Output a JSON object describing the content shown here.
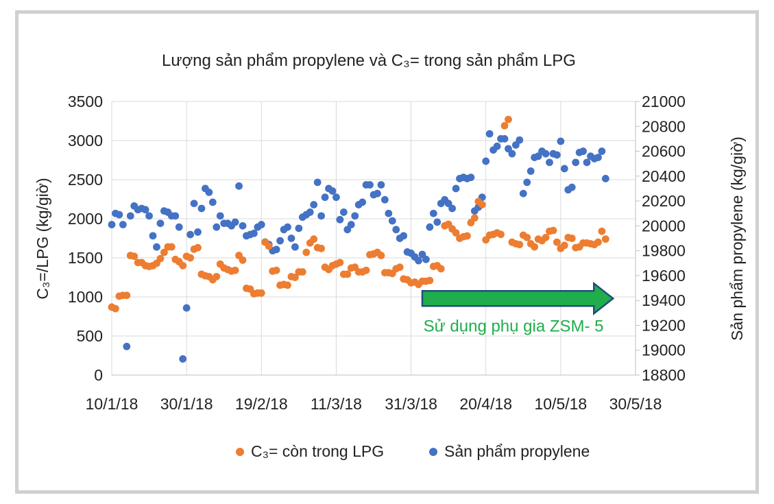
{
  "chart_data": {
    "type": "scatter",
    "title": "Lượng sản phẩm propylene và C₃= trong sản phẩm LPG",
    "x_tick_labels": [
      "10/1/18",
      "30/1/18",
      "19/2/18",
      "11/3/18",
      "31/3/18",
      "20/4/18",
      "10/5/18",
      "30/5/18"
    ],
    "x_tick_dates": [
      "2018-01-10",
      "2018-01-30",
      "2018-02-19",
      "2018-03-11",
      "2018-03-31",
      "2018-04-20",
      "2018-05-10",
      "2018-05-30"
    ],
    "xlim": [
      "2018-01-10",
      "2018-05-30"
    ],
    "ylabel_left": "C₃=/LPG (kg/giờ)",
    "ylabel_right": "Sản phẩm propylene (kg/giờ)",
    "ylim_left": [
      0,
      3500
    ],
    "ylim_right": [
      18800,
      21000
    ],
    "yticks_left": [
      "0",
      "500",
      "1000",
      "1500",
      "2000",
      "2500",
      "3000",
      "3500"
    ],
    "yticks_right": [
      "18800",
      "19000",
      "19200",
      "19400",
      "19600",
      "19800",
      "20000",
      "20200",
      "20400",
      "20600",
      "20800",
      "21000"
    ],
    "grid": true,
    "legend_position": "bottom",
    "annotation": {
      "text": "Sử dụng phụ gia ZSM- 5",
      "arrow_start": "2018-04-03",
      "arrow_end": "2018-05-24",
      "arrow_at_left_value": 980,
      "color": "#1fae4b"
    },
    "series": [
      {
        "name": "C₃= còn trong LPG",
        "axis": "left",
        "color": "#ed7d31",
        "points": [
          [
            "2018-01-10",
            870
          ],
          [
            "2018-01-11",
            850
          ],
          [
            "2018-01-12",
            1010
          ],
          [
            "2018-01-13",
            1020
          ],
          [
            "2018-01-14",
            1020
          ],
          [
            "2018-01-15",
            1530
          ],
          [
            "2018-01-16",
            1520
          ],
          [
            "2018-01-17",
            1440
          ],
          [
            "2018-01-18",
            1440
          ],
          [
            "2018-01-19",
            1400
          ],
          [
            "2018-01-20",
            1390
          ],
          [
            "2018-01-21",
            1400
          ],
          [
            "2018-01-22",
            1430
          ],
          [
            "2018-01-23",
            1490
          ],
          [
            "2018-01-24",
            1570
          ],
          [
            "2018-01-25",
            1640
          ],
          [
            "2018-01-26",
            1640
          ],
          [
            "2018-01-27",
            1480
          ],
          [
            "2018-01-28",
            1450
          ],
          [
            "2018-01-29",
            1400
          ],
          [
            "2018-01-30",
            1520
          ],
          [
            "2018-01-31",
            1500
          ],
          [
            "2018-02-01",
            1610
          ],
          [
            "2018-02-02",
            1630
          ],
          [
            "2018-02-03",
            1290
          ],
          [
            "2018-02-04",
            1270
          ],
          [
            "2018-02-05",
            1260
          ],
          [
            "2018-02-06",
            1220
          ],
          [
            "2018-02-07",
            1260
          ],
          [
            "2018-02-08",
            1420
          ],
          [
            "2018-02-09",
            1370
          ],
          [
            "2018-02-10",
            1350
          ],
          [
            "2018-02-11",
            1330
          ],
          [
            "2018-02-12",
            1340
          ],
          [
            "2018-02-13",
            1530
          ],
          [
            "2018-02-14",
            1470
          ],
          [
            "2018-02-15",
            1110
          ],
          [
            "2018-02-16",
            1100
          ],
          [
            "2018-02-17",
            1040
          ],
          [
            "2018-02-18",
            1050
          ],
          [
            "2018-02-19",
            1050
          ],
          [
            "2018-02-20",
            1700
          ],
          [
            "2018-02-21",
            1650
          ],
          [
            "2018-02-22",
            1330
          ],
          [
            "2018-02-23",
            1340
          ],
          [
            "2018-02-24",
            1150
          ],
          [
            "2018-02-25",
            1160
          ],
          [
            "2018-02-26",
            1150
          ],
          [
            "2018-02-27",
            1260
          ],
          [
            "2018-02-28",
            1250
          ],
          [
            "2018-03-01",
            1320
          ],
          [
            "2018-03-02",
            1320
          ],
          [
            "2018-03-03",
            1570
          ],
          [
            "2018-03-04",
            1690
          ],
          [
            "2018-03-05",
            1740
          ],
          [
            "2018-03-06",
            1630
          ],
          [
            "2018-03-07",
            1620
          ],
          [
            "2018-03-08",
            1380
          ],
          [
            "2018-03-09",
            1350
          ],
          [
            "2018-03-10",
            1400
          ],
          [
            "2018-03-11",
            1420
          ],
          [
            "2018-03-12",
            1440
          ],
          [
            "2018-03-13",
            1290
          ],
          [
            "2018-03-14",
            1290
          ],
          [
            "2018-03-15",
            1370
          ],
          [
            "2018-03-16",
            1380
          ],
          [
            "2018-03-17",
            1320
          ],
          [
            "2018-03-18",
            1320
          ],
          [
            "2018-03-19",
            1340
          ],
          [
            "2018-03-20",
            1540
          ],
          [
            "2018-03-21",
            1550
          ],
          [
            "2018-03-22",
            1570
          ],
          [
            "2018-03-23",
            1530
          ],
          [
            "2018-03-24",
            1310
          ],
          [
            "2018-03-25",
            1310
          ],
          [
            "2018-03-26",
            1300
          ],
          [
            "2018-03-27",
            1360
          ],
          [
            "2018-03-28",
            1380
          ],
          [
            "2018-03-29",
            1230
          ],
          [
            "2018-03-30",
            1220
          ],
          [
            "2018-03-31",
            1180
          ],
          [
            "2018-04-01",
            1190
          ],
          [
            "2018-04-02",
            1160
          ],
          [
            "2018-04-03",
            1200
          ],
          [
            "2018-04-04",
            1200
          ],
          [
            "2018-04-05",
            1210
          ],
          [
            "2018-04-06",
            1390
          ],
          [
            "2018-04-07",
            1400
          ],
          [
            "2018-04-08",
            1360
          ],
          [
            "2018-04-09",
            1910
          ],
          [
            "2018-04-10",
            1930
          ],
          [
            "2018-04-11",
            1870
          ],
          [
            "2018-04-12",
            1820
          ],
          [
            "2018-04-13",
            1750
          ],
          [
            "2018-04-14",
            1770
          ],
          [
            "2018-04-15",
            1780
          ],
          [
            "2018-04-16",
            1950
          ],
          [
            "2018-04-17",
            2010
          ],
          [
            "2018-04-18",
            2220
          ],
          [
            "2018-04-19",
            2180
          ],
          [
            "2018-04-20",
            1730
          ],
          [
            "2018-04-21",
            1790
          ],
          [
            "2018-04-22",
            1800
          ],
          [
            "2018-04-23",
            1820
          ],
          [
            "2018-04-24",
            1800
          ],
          [
            "2018-04-25",
            3190
          ],
          [
            "2018-04-26",
            3270
          ],
          [
            "2018-04-27",
            1700
          ],
          [
            "2018-04-28",
            1680
          ],
          [
            "2018-04-29",
            1670
          ],
          [
            "2018-04-30",
            1790
          ],
          [
            "2018-05-01",
            1760
          ],
          [
            "2018-05-02",
            1680
          ],
          [
            "2018-05-03",
            1640
          ],
          [
            "2018-05-04",
            1740
          ],
          [
            "2018-05-05",
            1720
          ],
          [
            "2018-05-06",
            1760
          ],
          [
            "2018-05-07",
            1840
          ],
          [
            "2018-05-08",
            1850
          ],
          [
            "2018-05-09",
            1700
          ],
          [
            "2018-05-10",
            1620
          ],
          [
            "2018-05-11",
            1660
          ],
          [
            "2018-05-12",
            1760
          ],
          [
            "2018-05-13",
            1750
          ],
          [
            "2018-05-14",
            1630
          ],
          [
            "2018-05-15",
            1640
          ],
          [
            "2018-05-16",
            1690
          ],
          [
            "2018-05-17",
            1690
          ],
          [
            "2018-05-18",
            1680
          ],
          [
            "2018-05-19",
            1670
          ],
          [
            "2018-05-20",
            1700
          ],
          [
            "2018-05-21",
            1840
          ],
          [
            "2018-05-22",
            1740
          ]
        ]
      },
      {
        "name": "Sản phẩm propylene",
        "axis": "right",
        "color": "#4472c4",
        "points": [
          [
            "2018-01-10",
            20010
          ],
          [
            "2018-01-11",
            20100
          ],
          [
            "2018-01-12",
            20090
          ],
          [
            "2018-01-13",
            20010
          ],
          [
            "2018-01-14",
            19030
          ],
          [
            "2018-01-15",
            20080
          ],
          [
            "2018-01-16",
            20160
          ],
          [
            "2018-01-17",
            20130
          ],
          [
            "2018-01-18",
            20140
          ],
          [
            "2018-01-19",
            20130
          ],
          [
            "2018-01-20",
            20080
          ],
          [
            "2018-01-21",
            19920
          ],
          [
            "2018-01-22",
            19830
          ],
          [
            "2018-01-23",
            20020
          ],
          [
            "2018-01-24",
            20120
          ],
          [
            "2018-01-25",
            20110
          ],
          [
            "2018-01-26",
            20080
          ],
          [
            "2018-01-27",
            20080
          ],
          [
            "2018-01-28",
            19990
          ],
          [
            "2018-01-29",
            18930
          ],
          [
            "2018-01-30",
            19340
          ],
          [
            "2018-01-31",
            19930
          ],
          [
            "2018-02-01",
            20180
          ],
          [
            "2018-02-02",
            19950
          ],
          [
            "2018-02-03",
            20140
          ],
          [
            "2018-02-04",
            20300
          ],
          [
            "2018-02-05",
            20270
          ],
          [
            "2018-02-06",
            20190
          ],
          [
            "2018-02-07",
            19990
          ],
          [
            "2018-02-08",
            20080
          ],
          [
            "2018-02-09",
            20020
          ],
          [
            "2018-02-10",
            20020
          ],
          [
            "2018-02-11",
            20000
          ],
          [
            "2018-02-12",
            20030
          ],
          [
            "2018-02-13",
            20320
          ],
          [
            "2018-02-14",
            20000
          ],
          [
            "2018-02-15",
            19920
          ],
          [
            "2018-02-16",
            19930
          ],
          [
            "2018-02-17",
            19940
          ],
          [
            "2018-02-18",
            19990
          ],
          [
            "2018-02-19",
            20010
          ],
          [
            "2018-02-20",
            19870
          ],
          [
            "2018-02-21",
            19850
          ],
          [
            "2018-02-22",
            19800
          ],
          [
            "2018-02-23",
            19810
          ],
          [
            "2018-02-24",
            19880
          ],
          [
            "2018-02-25",
            19970
          ],
          [
            "2018-02-26",
            19990
          ],
          [
            "2018-02-27",
            19900
          ],
          [
            "2018-02-28",
            19830
          ],
          [
            "2018-03-01",
            19980
          ],
          [
            "2018-03-02",
            20070
          ],
          [
            "2018-03-03",
            20090
          ],
          [
            "2018-03-04",
            20110
          ],
          [
            "2018-03-05",
            20170
          ],
          [
            "2018-03-06",
            20350
          ],
          [
            "2018-03-07",
            20080
          ],
          [
            "2018-03-08",
            20230
          ],
          [
            "2018-03-09",
            20300
          ],
          [
            "2018-03-10",
            20280
          ],
          [
            "2018-03-11",
            20230
          ],
          [
            "2018-03-12",
            20050
          ],
          [
            "2018-03-13",
            20110
          ],
          [
            "2018-03-14",
            19970
          ],
          [
            "2018-03-15",
            20010
          ],
          [
            "2018-03-16",
            20080
          ],
          [
            "2018-03-17",
            20170
          ],
          [
            "2018-03-18",
            20190
          ],
          [
            "2018-03-19",
            20330
          ],
          [
            "2018-03-20",
            20330
          ],
          [
            "2018-03-21",
            20250
          ],
          [
            "2018-03-22",
            20260
          ],
          [
            "2018-03-23",
            20330
          ],
          [
            "2018-03-24",
            20210
          ],
          [
            "2018-03-25",
            20100
          ],
          [
            "2018-03-26",
            20040
          ],
          [
            "2018-03-27",
            19970
          ],
          [
            "2018-03-28",
            19900
          ],
          [
            "2018-03-29",
            19920
          ],
          [
            "2018-03-30",
            19790
          ],
          [
            "2018-03-31",
            19780
          ],
          [
            "2018-04-01",
            19750
          ],
          [
            "2018-04-02",
            19720
          ],
          [
            "2018-04-03",
            19770
          ],
          [
            "2018-04-04",
            19730
          ],
          [
            "2018-04-05",
            19990
          ],
          [
            "2018-04-06",
            20100
          ],
          [
            "2018-04-07",
            20030
          ],
          [
            "2018-04-08",
            20180
          ],
          [
            "2018-04-09",
            20210
          ],
          [
            "2018-04-10",
            20180
          ],
          [
            "2018-04-11",
            20140
          ],
          [
            "2018-04-12",
            20300
          ],
          [
            "2018-04-13",
            20380
          ],
          [
            "2018-04-14",
            20390
          ],
          [
            "2018-04-15",
            20380
          ],
          [
            "2018-04-16",
            20390
          ],
          [
            "2018-04-17",
            20120
          ],
          [
            "2018-04-18",
            20150
          ],
          [
            "2018-04-19",
            20230
          ],
          [
            "2018-04-20",
            20520
          ],
          [
            "2018-04-21",
            20740
          ],
          [
            "2018-04-22",
            20610
          ],
          [
            "2018-04-23",
            20640
          ],
          [
            "2018-04-24",
            20700
          ],
          [
            "2018-04-25",
            20700
          ],
          [
            "2018-04-26",
            20620
          ],
          [
            "2018-04-27",
            20580
          ],
          [
            "2018-04-28",
            20650
          ],
          [
            "2018-04-29",
            20690
          ],
          [
            "2018-04-30",
            20260
          ],
          [
            "2018-05-01",
            20350
          ],
          [
            "2018-05-02",
            20440
          ],
          [
            "2018-05-03",
            20550
          ],
          [
            "2018-05-04",
            20560
          ],
          [
            "2018-05-05",
            20600
          ],
          [
            "2018-05-06",
            20580
          ],
          [
            "2018-05-07",
            20510
          ],
          [
            "2018-05-08",
            20580
          ],
          [
            "2018-05-09",
            20570
          ],
          [
            "2018-05-10",
            20680
          ],
          [
            "2018-05-11",
            20460
          ],
          [
            "2018-05-12",
            20290
          ],
          [
            "2018-05-13",
            20310
          ],
          [
            "2018-05-14",
            20510
          ],
          [
            "2018-05-15",
            20590
          ],
          [
            "2018-05-16",
            20600
          ],
          [
            "2018-05-17",
            20510
          ],
          [
            "2018-05-18",
            20560
          ],
          [
            "2018-05-19",
            20540
          ],
          [
            "2018-05-20",
            20550
          ],
          [
            "2018-05-21",
            20600
          ],
          [
            "2018-05-22",
            20380
          ]
        ]
      }
    ]
  }
}
